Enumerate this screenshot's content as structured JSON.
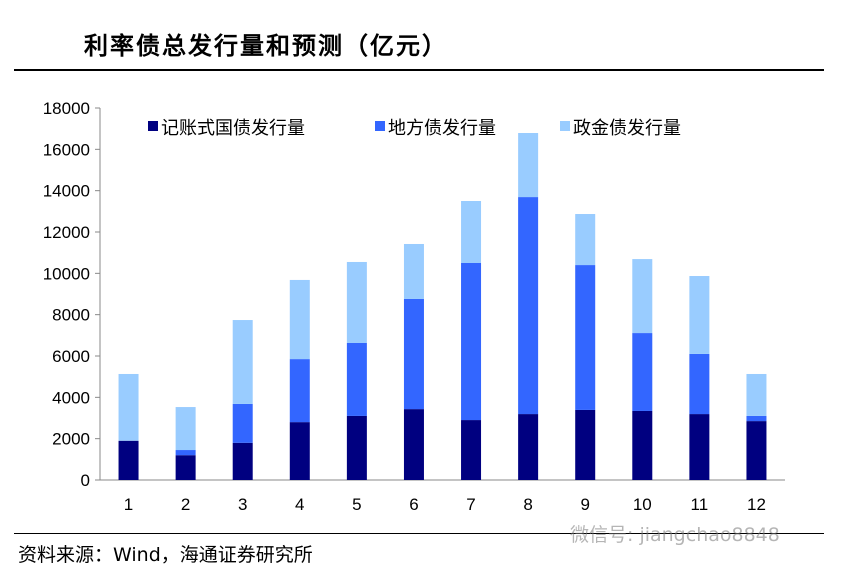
{
  "header": {
    "title": "利率债总发行量和预测（亿元）"
  },
  "footer": {
    "source": "资料来源：Wind，海通证券研究所",
    "watermark": "微信号: jiangchao8848"
  },
  "colors": {
    "treasury": "#000080",
    "local": "#3366FF",
    "policy": "#99CCFF"
  },
  "chart_data": {
    "type": "bar",
    "stacked": true,
    "title": "利率债总发行量和预测（亿元）",
    "categories": [
      "1",
      "2",
      "3",
      "4",
      "5",
      "6",
      "7",
      "8",
      "9",
      "10",
      "11",
      "12"
    ],
    "series": [
      {
        "name": "记账式国债发行量",
        "values": [
          1900,
          1200,
          1800,
          2800,
          3100,
          3430,
          2900,
          3190,
          3390,
          3340,
          3190,
          2850
        ]
      },
      {
        "name": "地方债发行量",
        "values": [
          0,
          250,
          1880,
          3050,
          3530,
          5330,
          7600,
          10500,
          7010,
          3770,
          2910,
          250
        ]
      },
      {
        "name": "政金债发行量",
        "values": [
          3230,
          2080,
          4060,
          3830,
          3920,
          2660,
          3000,
          3100,
          2470,
          3580,
          3770,
          2030
        ]
      }
    ],
    "ylim": [
      0,
      18000
    ],
    "yticks": [
      "0",
      "2000",
      "4000",
      "6000",
      "8000",
      "10000",
      "12000",
      "14000",
      "16000",
      "18000"
    ],
    "legend": "top",
    "grid": false
  }
}
